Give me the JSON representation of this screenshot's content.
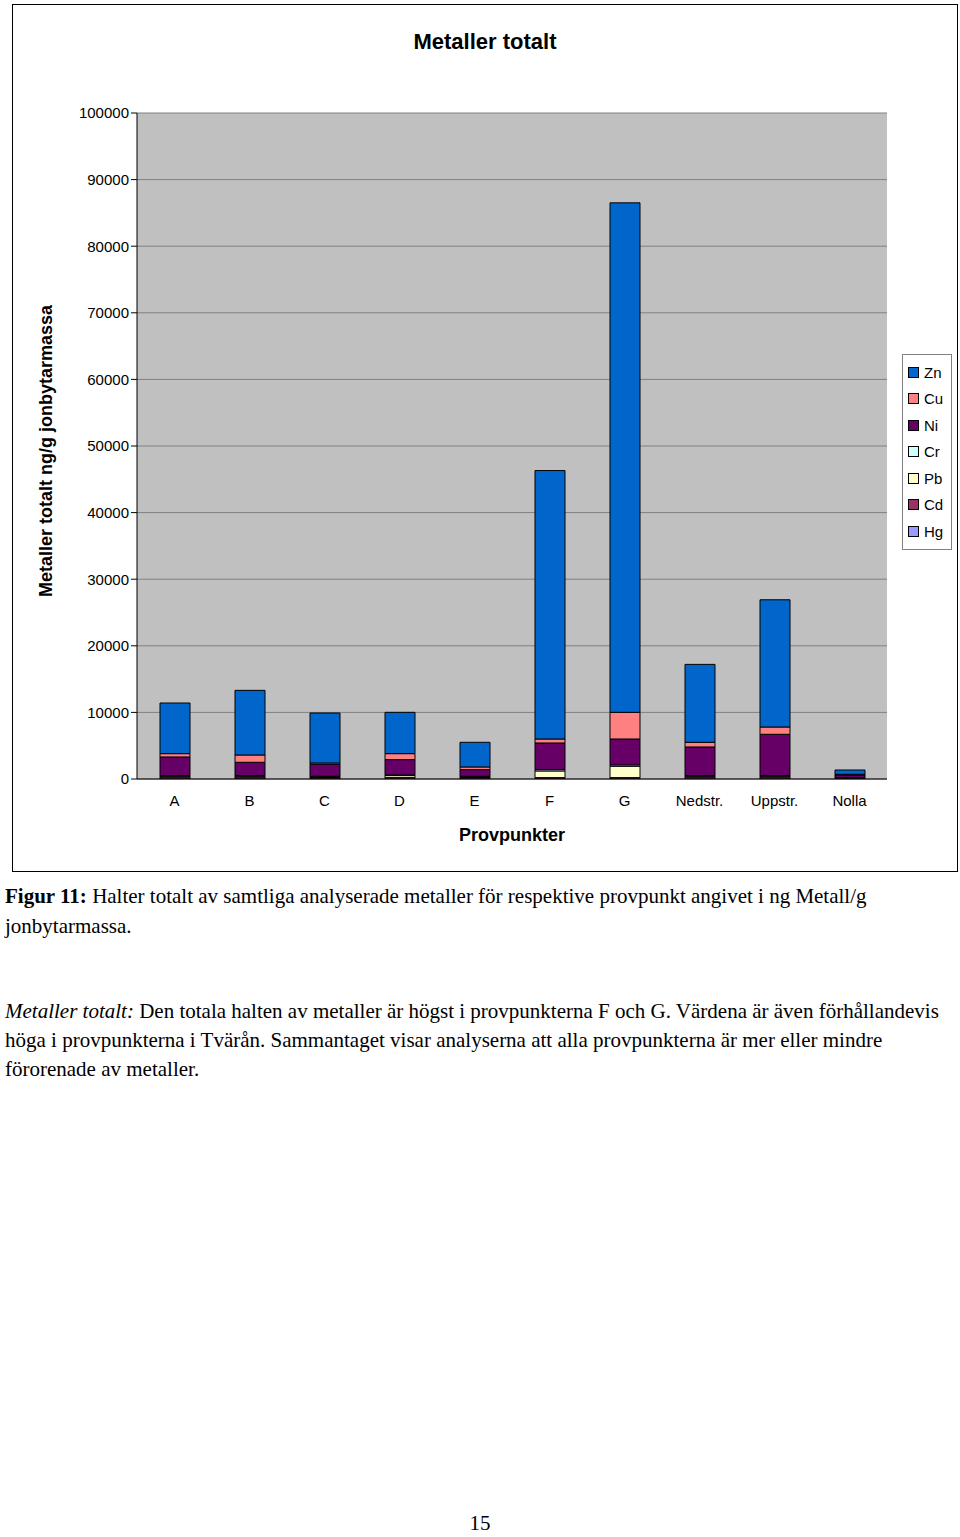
{
  "chart_data": {
    "type": "bar",
    "stacked": true,
    "title": "Metaller totalt",
    "x_label": "Provpunkter",
    "y_label": "Metaller totalt ng/g jonbytarmassa",
    "categories": [
      "A",
      "B",
      "C",
      "D",
      "E",
      "F",
      "G",
      "Nedstr.",
      "Uppstr.",
      "Nolla"
    ],
    "series": [
      {
        "name": "Hg",
        "color": "#9999ff",
        "values": [
          10,
          10,
          10,
          10,
          10,
          10,
          10,
          10,
          10,
          10
        ]
      },
      {
        "name": "Cd",
        "color": "#993366",
        "values": [
          300,
          300,
          200,
          200,
          200,
          200,
          200,
          300,
          300,
          100
        ]
      },
      {
        "name": "Pb",
        "color": "#ffffcc",
        "values": [
          100,
          100,
          100,
          300,
          100,
          1000,
          1700,
          100,
          100,
          50
        ]
      },
      {
        "name": "Cr",
        "color": "#ccffff",
        "values": [
          100,
          100,
          100,
          100,
          100,
          200,
          200,
          100,
          100,
          50
        ]
      },
      {
        "name": "Ni",
        "color": "#660066",
        "values": [
          2800,
          2000,
          1800,
          2300,
          1000,
          4000,
          3900,
          4300,
          6200,
          400
        ]
      },
      {
        "name": "Cu",
        "color": "#ff8080",
        "values": [
          500,
          1100,
          200,
          900,
          400,
          600,
          4000,
          700,
          1100,
          100
        ]
      },
      {
        "name": "Zn",
        "color": "#0066cc",
        "values": [
          7600,
          9700,
          7500,
          6200,
          3700,
          40300,
          76500,
          11700,
          19100,
          640
        ]
      }
    ],
    "ylim": [
      0,
      100000
    ],
    "yticks": [
      0,
      10000,
      20000,
      30000,
      40000,
      50000,
      60000,
      70000,
      80000,
      90000,
      100000
    ],
    "grid": true,
    "legend": "right"
  },
  "caption": {
    "label": "Figur 11:",
    "text": "Halter totalt av samtliga analyserade metaller för respektive provpunkt angivet i ng Metall/g jonbytarmassa."
  },
  "paragraph": {
    "lead": "Metaller totalt:",
    "text": "Den totala halten av metaller är högst i provpunkterna F och G. Värdena är även förhållandevis höga i provpunkterna i Tvärån. Sammantaget visar analyserna att alla provpunkterna är mer eller mindre förorenade av metaller."
  },
  "page_number": 15
}
